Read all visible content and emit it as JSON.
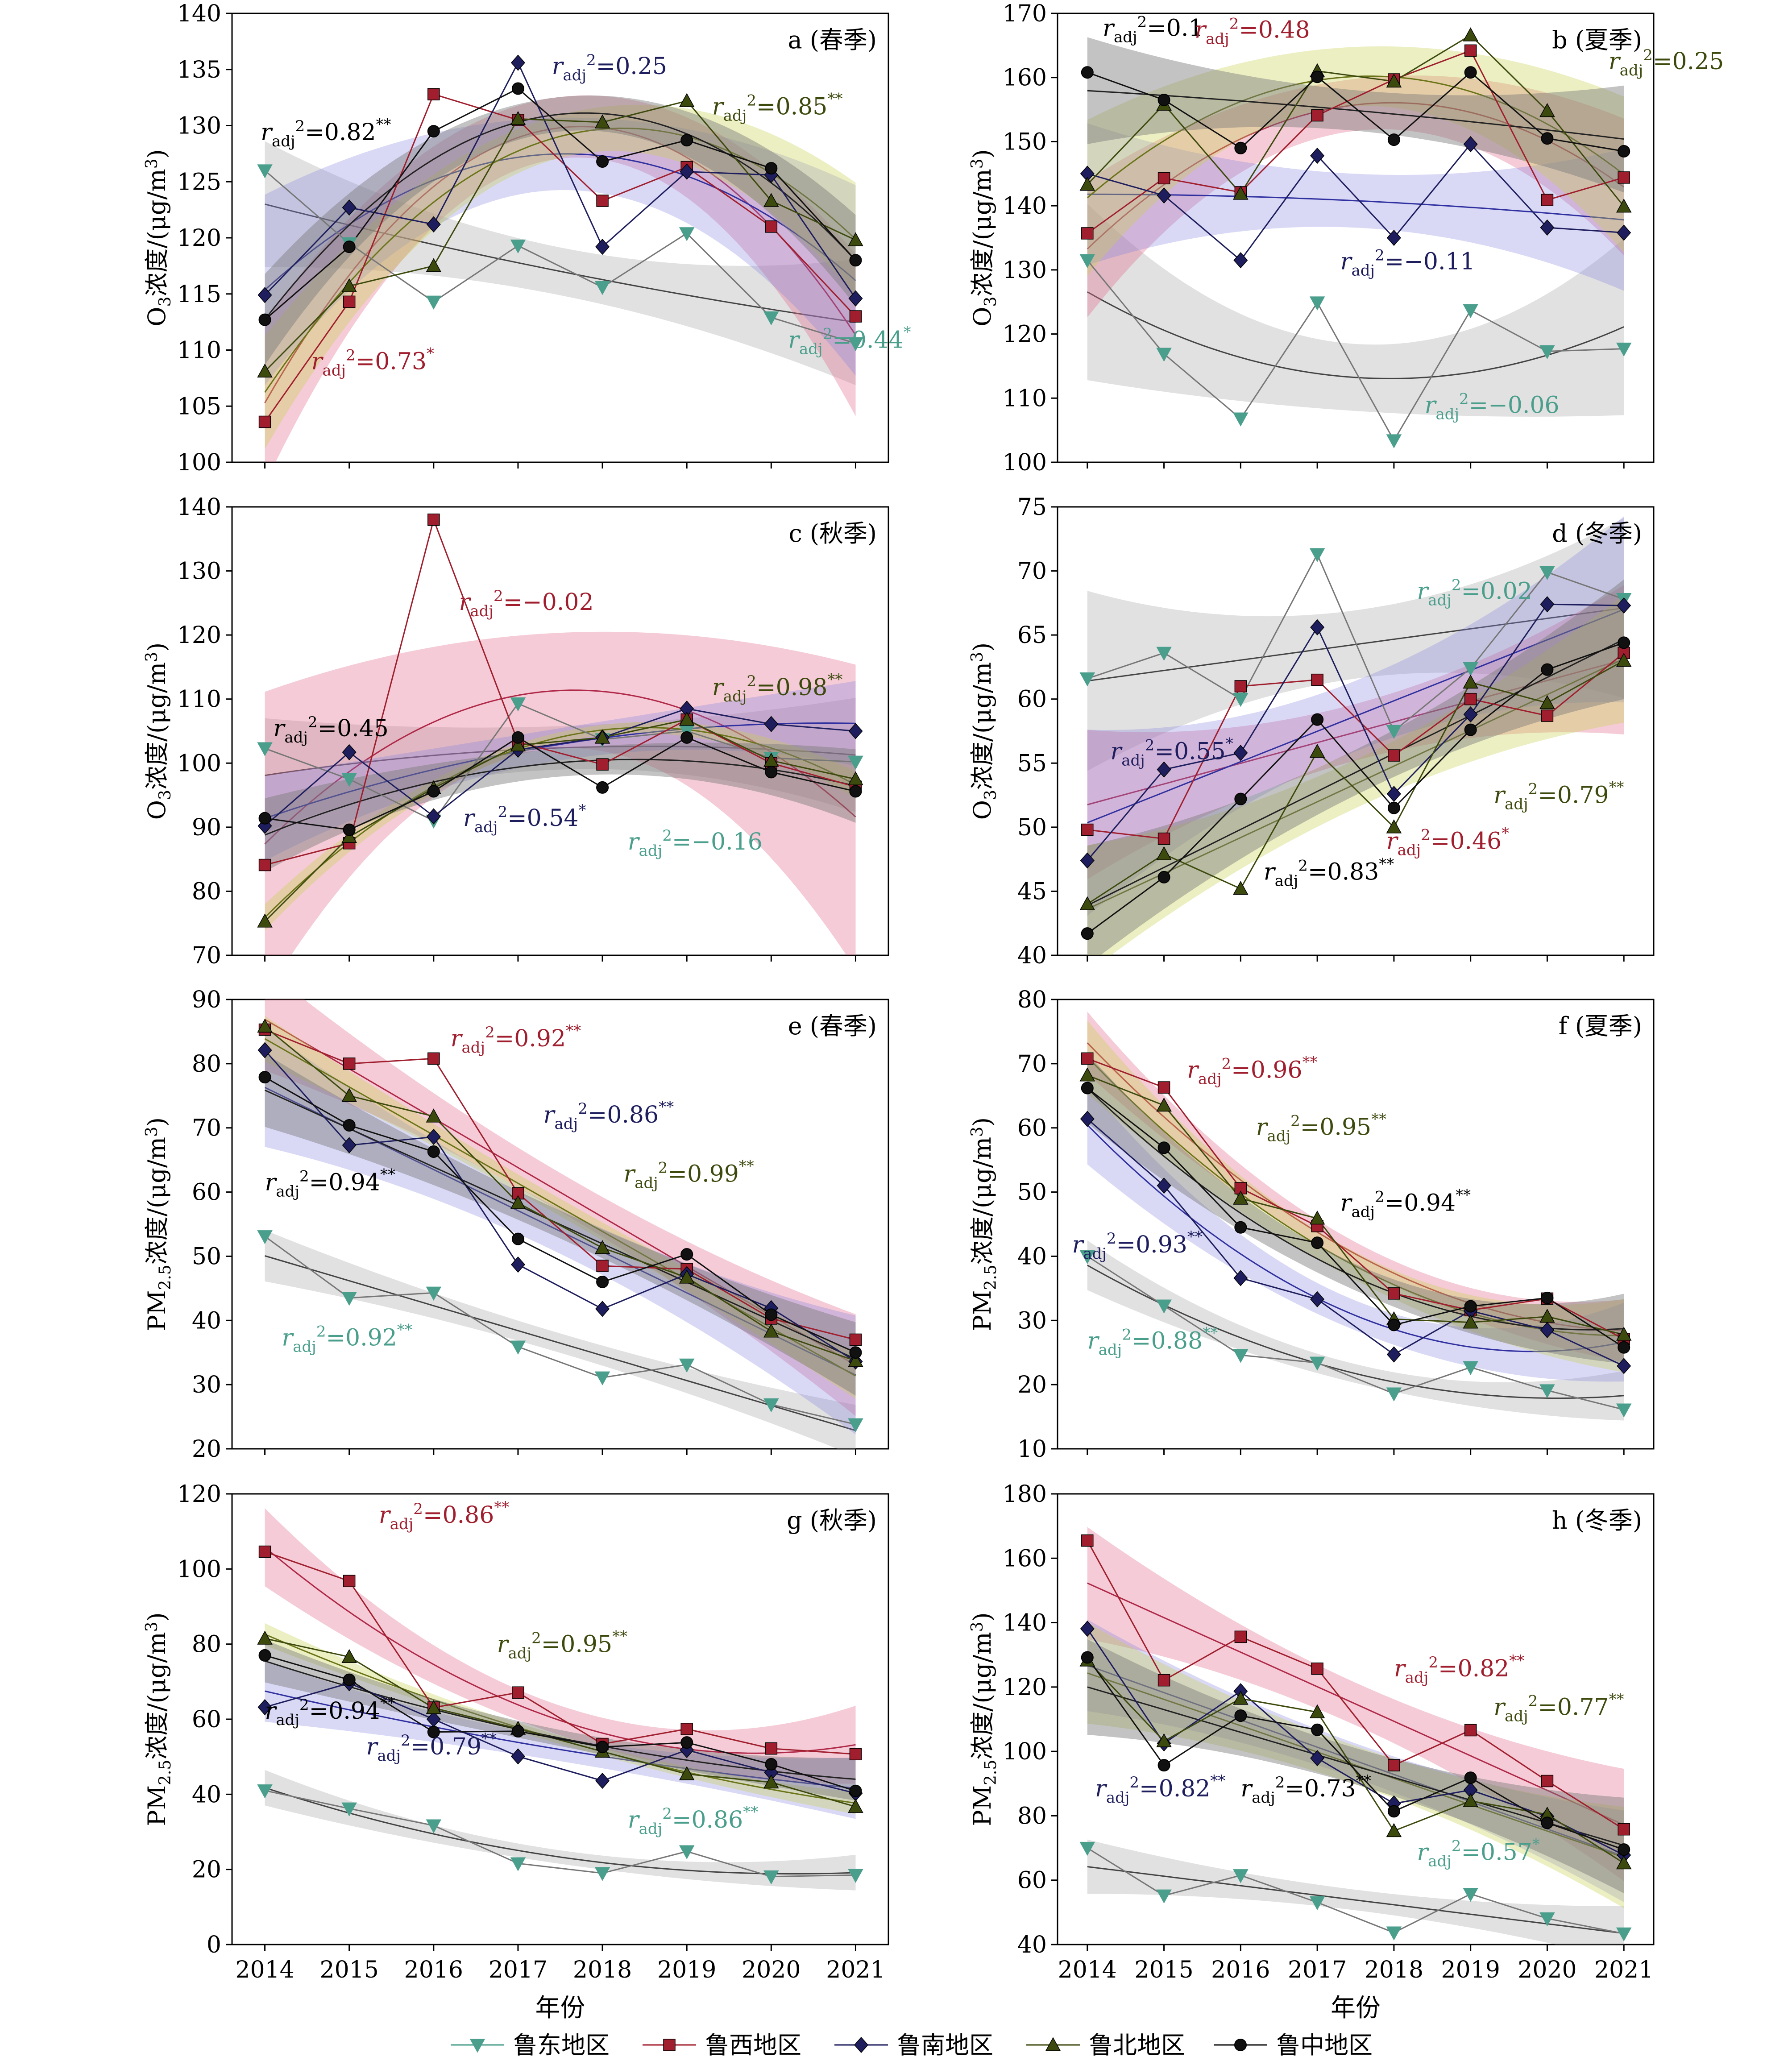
{
  "figure": {
    "x_label": "年份",
    "r_symbol": "r",
    "r_sub": "adj",
    "r_sup": "2",
    "unit_o3": "O",
    "unit_pm": "PM"
  },
  "colors": {
    "鲁东地区": "#4a9e8c",
    "鲁西地区": "#a01e2e",
    "鲁南地区": "#1e1e5e",
    "鲁北地区": "#3d4a0e",
    "鲁中地区": "#111111"
  },
  "legend": [
    {
      "name": "鲁东地区",
      "marker": "triangle-down",
      "color": "#4a9e8c"
    },
    {
      "name": "鲁西地区",
      "marker": "square",
      "color": "#a01e2e"
    },
    {
      "name": "鲁南地区",
      "marker": "diamond",
      "color": "#1e1e5e"
    },
    {
      "name": "鲁北地区",
      "marker": "triangle-up",
      "color": "#3d4a0e"
    },
    {
      "name": "鲁中地区",
      "marker": "circle",
      "color": "#111111"
    }
  ],
  "chart_data": [
    {
      "type": "line",
      "panel": "a (春季)",
      "ylabel": "O3浓度/(μg/m3)",
      "ylim": [
        100,
        140
      ],
      "yticks": [
        100,
        105,
        110,
        115,
        120,
        125,
        130,
        135,
        140
      ],
      "x": [
        2014,
        2015,
        2016,
        2017,
        2018,
        2019,
        2020,
        2021
      ],
      "series": [
        {
          "name": "鲁东地区",
          "values": [
            126,
            119.5,
            114.3,
            119.3,
            115.6,
            120.4,
            112.9,
            110.6
          ]
        },
        {
          "name": "鲁西地区",
          "values": [
            103.6,
            114.3,
            132.8,
            130.5,
            123.3,
            126.3,
            121,
            113
          ]
        },
        {
          "name": "鲁南地区",
          "values": [
            114.9,
            122.7,
            121.2,
            135.6,
            119.2,
            125.9,
            125.6,
            114.6
          ]
        },
        {
          "name": "鲁北地区",
          "values": [
            108.1,
            115.7,
            117.5,
            130.6,
            130.3,
            132.2,
            123.3,
            119.8
          ]
        },
        {
          "name": "鲁中地区",
          "values": [
            112.7,
            119.2,
            129.5,
            133.3,
            126.8,
            128.7,
            126.2,
            118
          ]
        }
      ],
      "annotations": [
        {
          "value": "0.82",
          "stars": "**",
          "series": "鲁中地区"
        },
        {
          "value": "0.25",
          "stars": "",
          "series": "鲁南地区"
        },
        {
          "value": "0.85",
          "stars": "**",
          "series": "鲁北地区"
        },
        {
          "value": "0.73",
          "stars": "*",
          "series": "鲁西地区"
        },
        {
          "value": "0.44",
          "stars": "*",
          "series": "鲁东地区"
        }
      ]
    },
    {
      "type": "line",
      "panel": "b (夏季)",
      "ylabel": "O3浓度/(μg/m3)",
      "ylim": [
        100,
        170
      ],
      "yticks": [
        100,
        110,
        120,
        130,
        140,
        150,
        160,
        170
      ],
      "x": [
        2014,
        2015,
        2016,
        2017,
        2018,
        2019,
        2020,
        2021
      ],
      "series": [
        {
          "name": "鲁东地区",
          "values": [
            131.5,
            116.9,
            106.8,
            124.9,
            103.4,
            123.7,
            117.3,
            117.7
          ]
        },
        {
          "name": "鲁西地区",
          "values": [
            135.7,
            144.3,
            142.1,
            154.1,
            159.7,
            164.2,
            140.9,
            144.4
          ]
        },
        {
          "name": "鲁南地区",
          "values": [
            145,
            141.6,
            131.5,
            147.8,
            135,
            149.6,
            136.6,
            135.8
          ]
        },
        {
          "name": "鲁北地区",
          "values": [
            143.3,
            155.8,
            141.9,
            161,
            159.4,
            166.6,
            154.8,
            139.9
          ]
        },
        {
          "name": "鲁中地区",
          "values": [
            160.8,
            156.5,
            149,
            160.1,
            150.3,
            160.8,
            150.5,
            148.5
          ]
        }
      ],
      "annotations": [
        {
          "value": "0.1",
          "stars": "",
          "series": "鲁中地区"
        },
        {
          "value": "0.48",
          "stars": "",
          "series": "鲁西地区"
        },
        {
          "value": "0.25",
          "stars": "",
          "series": "鲁北地区"
        },
        {
          "value": "−0.11",
          "stars": "",
          "series": "鲁南地区"
        },
        {
          "value": "−0.06",
          "stars": "",
          "series": "鲁东地区"
        }
      ]
    },
    {
      "type": "line",
      "panel": "c (秋季)",
      "ylabel": "O3浓度/(μg/m3)",
      "ylim": [
        70,
        140
      ],
      "yticks": [
        70,
        80,
        90,
        100,
        110,
        120,
        130,
        140
      ],
      "x": [
        2014,
        2015,
        2016,
        2017,
        2018,
        2019,
        2020,
        2021
      ],
      "series": [
        {
          "name": "鲁东地区",
          "values": [
            102.3,
            97.5,
            91,
            109.3,
            103.7,
            105,
            100.8,
            100.2
          ]
        },
        {
          "name": "鲁西地区",
          "values": [
            84.1,
            87.5,
            138,
            103.3,
            99.8,
            106.8,
            100,
            96.3
          ]
        },
        {
          "name": "鲁南地区",
          "values": [
            90.2,
            101.7,
            91.7,
            102.1,
            104,
            108.5,
            106.1,
            105
          ]
        },
        {
          "name": "鲁北地区",
          "values": [
            75.3,
            88.5,
            96.1,
            102.8,
            104,
            106.8,
            100.4,
            97.5
          ]
        },
        {
          "name": "鲁中地区",
          "values": [
            91.4,
            89.6,
            95.6,
            104,
            96.2,
            104,
            98.6,
            95.6
          ]
        }
      ],
      "annotations": [
        {
          "value": "−0.02",
          "stars": "",
          "series": "鲁西地区"
        },
        {
          "value": "0.45",
          "stars": "",
          "series": "鲁中地区"
        },
        {
          "value": "0.98",
          "stars": "**",
          "series": "鲁北地区"
        },
        {
          "value": "0.54",
          "stars": "*",
          "series": "鲁南地区"
        },
        {
          "value": "−0.16",
          "stars": "",
          "series": "鲁东地区"
        }
      ]
    },
    {
      "type": "line",
      "panel": "d (冬季)",
      "ylabel": "O3浓度/(μg/m3)",
      "ylim": [
        40,
        75
      ],
      "yticks": [
        40,
        45,
        50,
        55,
        60,
        65,
        70,
        75
      ],
      "x": [
        2014,
        2015,
        2016,
        2017,
        2018,
        2019,
        2020,
        2021
      ],
      "series": [
        {
          "name": "鲁东地区",
          "values": [
            61.6,
            63.6,
            60,
            71.3,
            57.5,
            62.4,
            69.9,
            67.8
          ]
        },
        {
          "name": "鲁西地区",
          "values": [
            49.8,
            49.1,
            61,
            61.5,
            55.6,
            60,
            58.7,
            63.6
          ]
        },
        {
          "name": "鲁南地区",
          "values": [
            47.4,
            54.5,
            55.8,
            65.6,
            52.6,
            58.8,
            67.4,
            67.3
          ]
        },
        {
          "name": "鲁北地区",
          "values": [
            44,
            47.9,
            45.2,
            55.9,
            50,
            61.3,
            59.7,
            63
          ]
        },
        {
          "name": "鲁中地区",
          "values": [
            41.7,
            46.1,
            52.2,
            58.4,
            51.5,
            57.6,
            62.3,
            64.4
          ]
        }
      ],
      "annotations": [
        {
          "value": "0.02",
          "stars": "",
          "series": "鲁东地区"
        },
        {
          "value": "0.55",
          "stars": "*",
          "series": "鲁南地区"
        },
        {
          "value": "0.79",
          "stars": "**",
          "series": "鲁北地区"
        },
        {
          "value": "0.83",
          "stars": "**",
          "series": "鲁中地区"
        },
        {
          "value": "0.46",
          "stars": "*",
          "series": "鲁西地区"
        }
      ]
    },
    {
      "type": "line",
      "panel": "e (春季)",
      "ylabel": "PM2.5浓度/(μg/m3)",
      "ylim": [
        20,
        90
      ],
      "yticks": [
        20,
        30,
        40,
        50,
        60,
        70,
        80,
        90
      ],
      "x": [
        2014,
        2015,
        2016,
        2017,
        2018,
        2019,
        2020,
        2021
      ],
      "series": [
        {
          "name": "鲁东地区",
          "values": [
            53.1,
            43.5,
            44.3,
            35.9,
            31.1,
            33.1,
            26.9,
            23.8
          ]
        },
        {
          "name": "鲁西地区",
          "values": [
            85.3,
            80,
            80.8,
            59.8,
            48.5,
            48,
            40.3,
            37
          ]
        },
        {
          "name": "鲁南地区",
          "values": [
            82.1,
            67.3,
            68.6,
            48.7,
            41.8,
            47.2,
            41.9,
            33.6
          ]
        },
        {
          "name": "鲁北地区",
          "values": [
            85.8,
            75,
            71.8,
            58.3,
            51.3,
            46.7,
            38.3,
            33.7
          ]
        },
        {
          "name": "鲁中地区",
          "values": [
            77.9,
            70.4,
            66.3,
            52.7,
            46,
            50.3,
            40.9,
            35
          ]
        }
      ],
      "annotations": [
        {
          "value": "0.92",
          "stars": "**",
          "series": "鲁西地区"
        },
        {
          "value": "0.86",
          "stars": "**",
          "series": "鲁南地区"
        },
        {
          "value": "0.94",
          "stars": "**",
          "series": "鲁中地区"
        },
        {
          "value": "0.99",
          "stars": "**",
          "series": "鲁北地区"
        },
        {
          "value": "0.92",
          "stars": "**",
          "series": "鲁东地区"
        }
      ]
    },
    {
      "type": "line",
      "panel": "f (夏季)",
      "ylabel": "PM2.5浓度/(μg/m3)",
      "ylim": [
        10,
        80
      ],
      "yticks": [
        10,
        20,
        30,
        40,
        50,
        60,
        70,
        80
      ],
      "x": [
        2014,
        2015,
        2016,
        2017,
        2018,
        2019,
        2020,
        2021
      ],
      "series": [
        {
          "name": "鲁东地区",
          "values": [
            40,
            32.3,
            24.6,
            23.4,
            18.6,
            22.7,
            19.1,
            16.1
          ]
        },
        {
          "name": "鲁西地区",
          "values": [
            70.8,
            66.3,
            50.6,
            44.7,
            34.2,
            31.6,
            33.4,
            27.1
          ]
        },
        {
          "name": "鲁南地区",
          "values": [
            61.4,
            51,
            36.6,
            33.3,
            24.7,
            31.5,
            28.5,
            22.9
          ]
        },
        {
          "name": "鲁北地区",
          "values": [
            68.2,
            63.5,
            49,
            45.9,
            30.2,
            29.7,
            30.6,
            27.8
          ]
        },
        {
          "name": "鲁中地区",
          "values": [
            66.2,
            56.9,
            44.5,
            42.1,
            29.3,
            32.2,
            33.5,
            25.8
          ]
        }
      ],
      "annotations": [
        {
          "value": "0.96",
          "stars": "**",
          "series": "鲁西地区"
        },
        {
          "value": "0.95",
          "stars": "**",
          "series": "鲁北地区"
        },
        {
          "value": "0.94",
          "stars": "**",
          "series": "鲁中地区"
        },
        {
          "value": "0.93",
          "stars": "**",
          "series": "鲁南地区"
        },
        {
          "value": "0.88",
          "stars": "**",
          "series": "鲁东地区"
        }
      ]
    },
    {
      "type": "line",
      "panel": "g (秋季)",
      "ylabel": "PM2.5浓度/(μg/m3)",
      "ylim": [
        0,
        120
      ],
      "yticks": [
        0,
        20,
        40,
        60,
        80,
        100,
        120
      ],
      "x": [
        2014,
        2015,
        2016,
        2017,
        2018,
        2019,
        2020,
        2021
      ],
      "series": [
        {
          "name": "鲁东地区",
          "values": [
            41,
            36.2,
            31.7,
            21.6,
            19,
            24.8,
            18.1,
            18.5
          ]
        },
        {
          "name": "鲁西地区",
          "values": [
            104.6,
            96.8,
            63.1,
            67.1,
            53.4,
            57.4,
            52.2,
            50.7
          ]
        },
        {
          "name": "鲁南地区",
          "values": [
            63.2,
            69.6,
            60,
            50.1,
            43.6,
            51.8,
            45.8,
            40.3
          ]
        },
        {
          "name": "鲁北地区",
          "values": [
            81.5,
            76.6,
            63,
            57.5,
            51.4,
            45.4,
            43.2,
            36.7
          ]
        },
        {
          "name": "鲁中地区",
          "values": [
            77,
            70.5,
            56.6,
            56.8,
            52.6,
            53.8,
            48,
            40.9
          ]
        }
      ],
      "annotations": [
        {
          "value": "0.86",
          "stars": "**",
          "series": "鲁西地区"
        },
        {
          "value": "0.95",
          "stars": "**",
          "series": "鲁北地区"
        },
        {
          "value": "0.94",
          "stars": "**",
          "series": "鲁中地区"
        },
        {
          "value": "0.79",
          "stars": "**",
          "series": "鲁南地区"
        },
        {
          "value": "0.86",
          "stars": "**",
          "series": "鲁东地区"
        }
      ]
    },
    {
      "type": "line",
      "panel": "h (冬季)",
      "ylabel": "PM2.5浓度/(μg/m3)",
      "ylim": [
        40,
        180
      ],
      "yticks": [
        40,
        60,
        80,
        100,
        120,
        140,
        160,
        180
      ],
      "x": [
        2014,
        2015,
        2016,
        2017,
        2018,
        2019,
        2020,
        2021
      ],
      "series": [
        {
          "name": "鲁东地区",
          "values": [
            70,
            55.2,
            61.5,
            53.1,
            43.7,
            55.7,
            48.1,
            43.4
          ]
        },
        {
          "name": "鲁西地区",
          "values": [
            165.5,
            122.1,
            135.6,
            125.7,
            95.7,
            106.6,
            90.8,
            75.8
          ]
        },
        {
          "name": "鲁南地区",
          "values": [
            138.1,
            102.5,
            118.7,
            97.9,
            83.8,
            88,
            79.8,
            67.8
          ]
        },
        {
          "name": "鲁北地区",
          "values": [
            128.3,
            103.2,
            116.4,
            112.2,
            75.3,
            84.6,
            80.4,
            65.3
          ]
        },
        {
          "name": "鲁中地区",
          "values": [
            129.2,
            95.7,
            111.1,
            106.7,
            81.4,
            91.8,
            77.8,
            69.5
          ]
        }
      ],
      "annotations": [
        {
          "value": "0.82",
          "stars": "**",
          "series": "鲁西地区"
        },
        {
          "value": "0.77",
          "stars": "**",
          "series": "鲁北地区"
        },
        {
          "value": "0.82",
          "stars": "**",
          "series": "鲁南地区"
        },
        {
          "value": "0.73",
          "stars": "**",
          "series": "鲁中地区"
        },
        {
          "value": "0.57",
          "stars": "*",
          "series": "鲁东地区"
        }
      ]
    }
  ]
}
